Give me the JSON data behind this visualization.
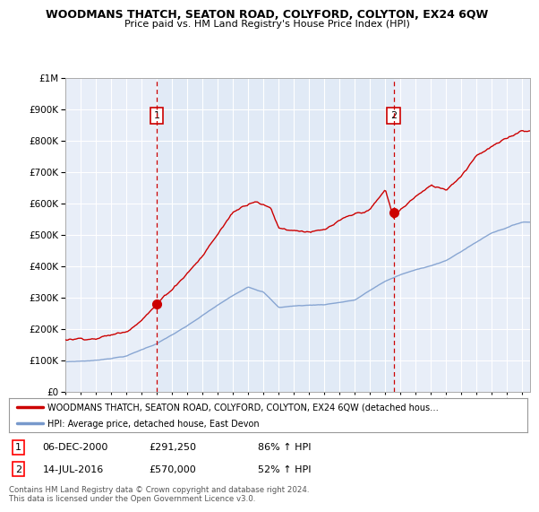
{
  "title": "WOODMANS THATCH, SEATON ROAD, COLYFORD, COLYTON, EX24 6QW",
  "subtitle": "Price paid vs. HM Land Registry's House Price Index (HPI)",
  "sale1_date": 2001.0,
  "sale1_price": 291250,
  "sale1_label": "06-DEC-2000",
  "sale1_pct": "86%",
  "sale2_date": 2016.54,
  "sale2_price": 570000,
  "sale2_label": "14-JUL-2016",
  "sale2_pct": "52%",
  "red_line_color": "#cc0000",
  "blue_line_color": "#7799cc",
  "dashed_color": "#cc0000",
  "background_color": "#ffffff",
  "plot_bg_color": "#e8eef8",
  "grid_color": "#ffffff",
  "legend_label_red": "WOODMANS THATCH, SEATON ROAD, COLYFORD, COLYTON, EX24 6QW (detached hous…",
  "legend_label_blue": "HPI: Average price, detached house, East Devon",
  "footer": "Contains HM Land Registry data © Crown copyright and database right 2024.\nThis data is licensed under the Open Government Licence v3.0.",
  "ylim": [
    0,
    1000000
  ],
  "xlim_start": 1995.0,
  "xlim_end": 2025.5
}
